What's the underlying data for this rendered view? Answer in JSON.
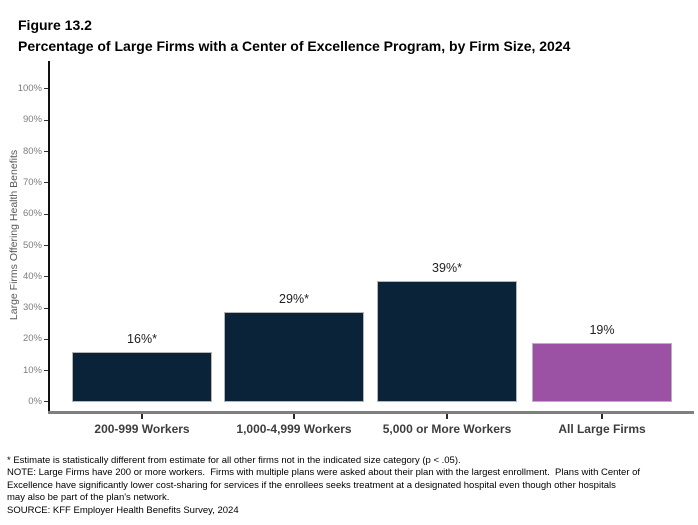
{
  "figure": {
    "label": "Figure 13.2",
    "title": "Percentage of Large Firms with a Center of Excellence Program, by Firm Size, 2024"
  },
  "chart_data": {
    "type": "bar",
    "title": "Percentage of Large Firms with a Center of Excellence Program, by Firm Size, 2024",
    "categories": [
      "200-999 Workers",
      "1,000-4,999 Workers",
      "5,000 or More Workers",
      "All Large Firms"
    ],
    "values": [
      16,
      29,
      39,
      19
    ],
    "value_labels": [
      "16%*",
      "29%*",
      "39%*",
      "19%"
    ],
    "bar_colors": [
      "#0A2338",
      "#0A2338",
      "#0A2338",
      "#9B52A5"
    ],
    "xlabel": "",
    "ylabel": "Large Firms Offering Health Benefits",
    "ylim": [
      0,
      100
    ],
    "y_ticks": [
      "0%",
      "10%",
      "20%",
      "30%",
      "40%",
      "50%",
      "60%",
      "70%",
      "80%",
      "90%",
      "100%"
    ],
    "grid": false,
    "legend": "none"
  },
  "footnotes": {
    "lines": [
      "* Estimate is statistically different from estimate for all other firms not in the indicated size category (p < .05).",
      "NOTE: Large Firms have 200 or more workers.  Firms with multiple plans were asked about their plan with the largest enrollment.  Plans with Center of",
      "Excellence have significantly lower cost-sharing for services if the enrollees seeks treatment at a designated hospital even though other hospitals",
      "may also be part of the plan's network.",
      "SOURCE: KFF Employer Health Benefits Survey, 2024"
    ]
  }
}
